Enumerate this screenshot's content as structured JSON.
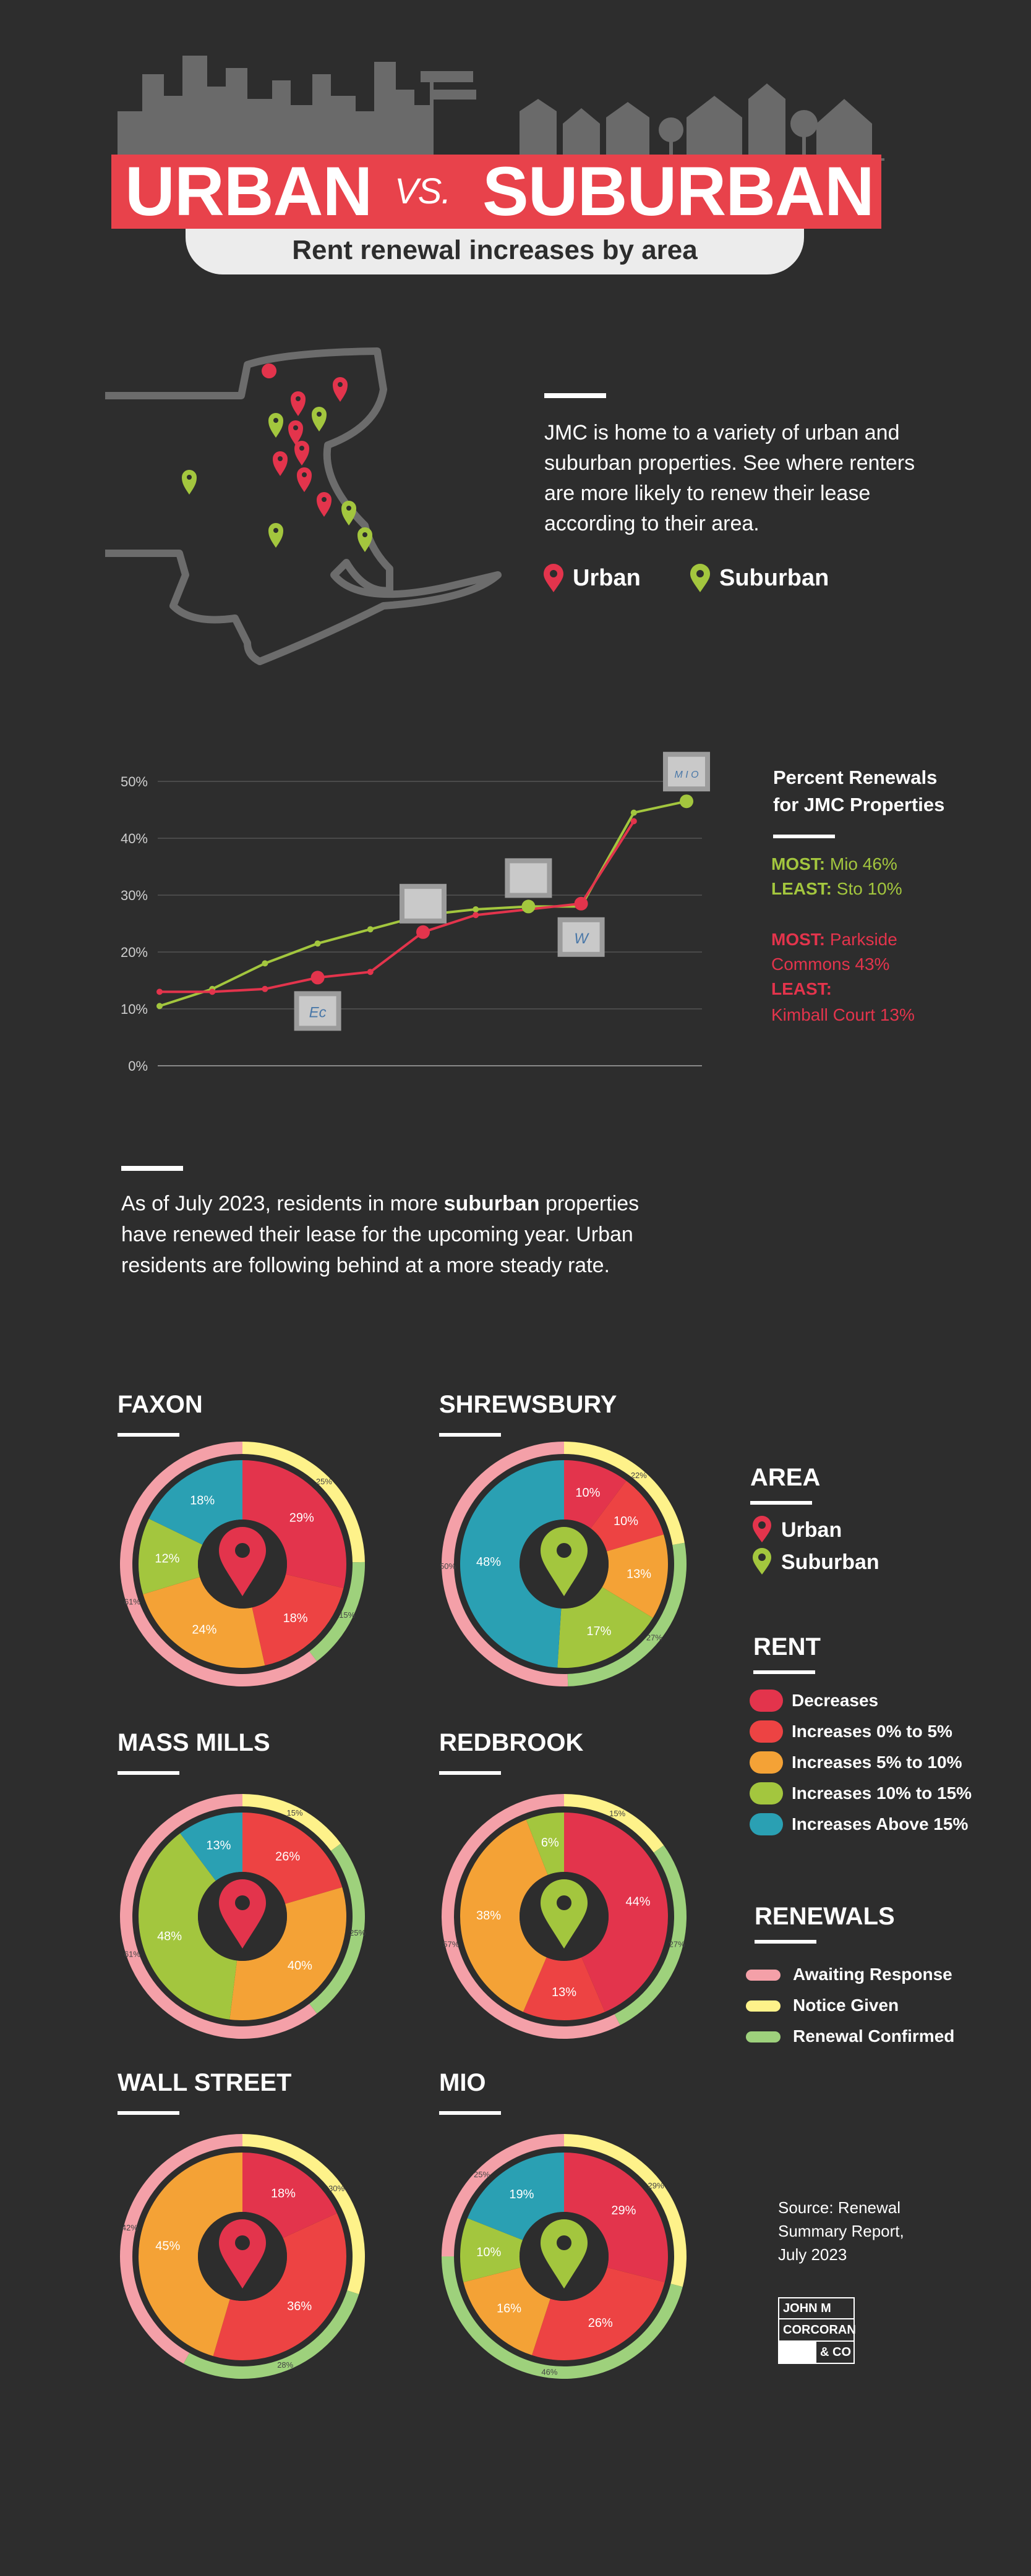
{
  "header": {
    "title_left": "URBAN",
    "title_vs": "VS.",
    "title_right": "SUBURBAN",
    "subtitle": "Rent renewal increases by area"
  },
  "intro": {
    "text": "JMC is home to a variety of urban and suburban properties. See where renters are more likely to renew their lease according to their area.",
    "legend_urban": "Urban",
    "legend_suburban": "Suburban"
  },
  "colors": {
    "background": "#2d2d2d",
    "urban": "#e3344c",
    "suburban": "#a3c63e",
    "decreases": "#e3344c",
    "inc_0_5": "#ed4343",
    "inc_5_10": "#f4a236",
    "inc_10_15": "#a3c63e",
    "inc_above_15": "#2aa0b3",
    "awaiting": "#f4a0a8",
    "notice": "#fef28a",
    "confirmed": "#9ed17c"
  },
  "chart_data": [
    {
      "type": "line",
      "title": "Percent Renewals for JMC Properties",
      "ylim": [
        0,
        50
      ],
      "yticks": [
        "0%",
        "10%",
        "20%",
        "30%",
        "40%",
        "50%"
      ],
      "series": [
        {
          "name": "Suburban",
          "values": [
            10.5,
            13.5,
            18,
            21.5,
            24,
            26.5,
            27.5,
            28,
            28,
            44.5,
            46.5
          ]
        },
        {
          "name": "Urban",
          "values": [
            13,
            13,
            13.5,
            15.5,
            16.5,
            23.5,
            26.5,
            27.5,
            28.5,
            43
          ]
        }
      ],
      "highlighted_points": [
        {
          "series": "Urban",
          "index": 3,
          "label": "Ec"
        },
        {
          "series": "Urban",
          "index": 5,
          "label": ""
        },
        {
          "series": "Suburban",
          "index": 7,
          "label": ""
        },
        {
          "series": "Urban",
          "index": 8,
          "label": "W"
        },
        {
          "series": "Suburban",
          "index": 10,
          "label": "M I O"
        }
      ]
    },
    {
      "type": "pie",
      "name": "FAXON",
      "area": "urban",
      "rent": [
        {
          "category": "Decreases",
          "value": 29,
          "label": "29%"
        },
        {
          "category": "Increases 0% to 5%",
          "value": 18,
          "label": "18%"
        },
        {
          "category": "Increases 5% to 10%",
          "value": 24,
          "label": "24%"
        },
        {
          "category": "Increases 10% to 15%",
          "value": 12,
          "label": "12%"
        },
        {
          "category": "Increases Above 15%",
          "value": 18,
          "label": "18%"
        }
      ],
      "renewals": [
        {
          "category": "Notice Given",
          "value": 25,
          "label": "25%"
        },
        {
          "category": "Renewal Confirmed",
          "value": 15,
          "label": "15%"
        },
        {
          "category": "Awaiting Response",
          "value": 61,
          "label": "61%"
        }
      ]
    },
    {
      "type": "pie",
      "name": "SHREWSBURY",
      "area": "suburban",
      "rent": [
        {
          "category": "Decreases",
          "value": 10,
          "label": "10%"
        },
        {
          "category": "Increases 0% to 5%",
          "value": 10,
          "label": "10%"
        },
        {
          "category": "Increases 5% to 10%",
          "value": 13,
          "label": "13%"
        },
        {
          "category": "Increases 10% to 15%",
          "value": 17,
          "label": "17%"
        },
        {
          "category": "Increases Above 15%",
          "value": 48,
          "label": "48%"
        }
      ],
      "renewals": [
        {
          "category": "Notice Given",
          "value": 22,
          "label": "22%"
        },
        {
          "category": "Renewal Confirmed",
          "value": 27,
          "label": "27%"
        },
        {
          "category": "Awaiting Response",
          "value": 50,
          "label": "50%"
        }
      ]
    },
    {
      "type": "pie",
      "name": "MASS MILLS",
      "area": "urban",
      "rent": [
        {
          "category": "Increases 0% to 5%",
          "value": 26,
          "label": "26%"
        },
        {
          "category": "Increases 5% to 10%",
          "value": 40,
          "label": "40%"
        },
        {
          "category": "Increases 10% to 15%",
          "value": 48,
          "label": "48%"
        },
        {
          "category": "Increases Above 15%",
          "value": 13,
          "label": "13%"
        }
      ],
      "renewals": [
        {
          "category": "Notice Given",
          "value": 15,
          "label": "15%"
        },
        {
          "category": "Renewal Confirmed",
          "value": 25,
          "label": "25%"
        },
        {
          "category": "Awaiting Response",
          "value": 61,
          "label": "61%"
        }
      ]
    },
    {
      "type": "pie",
      "name": "REDBROOK",
      "area": "suburban",
      "rent": [
        {
          "category": "Decreases",
          "value": 44,
          "label": "44%"
        },
        {
          "category": "Increases 0% to 5%",
          "value": 13,
          "label": "13%"
        },
        {
          "category": "Increases 5% to 10%",
          "value": 38,
          "label": "38%"
        },
        {
          "category": "Increases 10% to 15%",
          "value": 6,
          "label": "6%"
        }
      ],
      "renewals": [
        {
          "category": "Notice Given",
          "value": 15,
          "label": "15%"
        },
        {
          "category": "Renewal Confirmed",
          "value": 27,
          "label": "27%"
        },
        {
          "category": "Awaiting Response",
          "value": 57,
          "label": "57%"
        }
      ]
    },
    {
      "type": "pie",
      "name": "WALL STREET",
      "area": "urban",
      "rent": [
        {
          "category": "Decreases",
          "value": 18,
          "label": "18%"
        },
        {
          "category": "Increases 0% to 5%",
          "value": 36,
          "label": "36%"
        },
        {
          "category": "Increases 5% to 10%",
          "value": 45,
          "label": "45%"
        }
      ],
      "renewals": [
        {
          "category": "Notice Given",
          "value": 30,
          "label": "30%"
        },
        {
          "category": "Renewal Confirmed",
          "value": 28,
          "label": "28%"
        },
        {
          "category": "Awaiting Response",
          "value": 42,
          "label": "42%"
        }
      ]
    },
    {
      "type": "pie",
      "name": "MIO",
      "area": "suburban",
      "rent": [
        {
          "category": "Decreases",
          "value": 29,
          "label": "29%"
        },
        {
          "category": "Increases 0% to 5%",
          "value": 26,
          "label": "26%"
        },
        {
          "category": "Increases 5% to 10%",
          "value": 16,
          "label": "16%"
        },
        {
          "category": "Increases 10% to 15%",
          "value": 10,
          "label": "10%"
        },
        {
          "category": "Increases Above 15%",
          "value": 19,
          "label": "19%"
        }
      ],
      "renewals": [
        {
          "category": "Notice Given",
          "value": 29,
          "label": "29%"
        },
        {
          "category": "Renewal Confirmed",
          "value": 46,
          "label": "46%"
        },
        {
          "category": "Awaiting Response",
          "value": 25,
          "label": "25%"
        }
      ]
    }
  ],
  "stats": {
    "heading_1": "Percent Renewals",
    "heading_2": "for JMC Properties",
    "most_suburban_label": "MOST:",
    "most_suburban_value": "Mio 46%",
    "least_suburban_label": "LEAST:",
    "least_suburban_value": "Sto 10%",
    "most_urban_label": "MOST:",
    "most_urban_value_1": "Parkside",
    "most_urban_value_2": "Commons 43%",
    "least_urban_label": "LEAST:",
    "least_urban_value": "Kimball Court  13%"
  },
  "summary": {
    "line_1_pre": "As of July 2023, residents in more ",
    "line_1_bold": "suburban",
    "line_1_post": " properties",
    "line_2": "have renewed their lease for the upcoming year. Urban",
    "line_3": "residents are following behind at a more steady rate."
  },
  "legend": {
    "area_title": "AREA",
    "area_urban": "Urban",
    "area_suburban": "Suburban",
    "rent_title": "RENT",
    "rent_items": [
      "Decreases",
      "Increases 0% to 5%",
      "Increases 5% to 10%",
      "Increases 10% to 15%",
      "Increases Above 15%"
    ],
    "renewals_title": "RENEWALS",
    "renewal_items": [
      "Awaiting Response",
      "Notice Given",
      "Renewal Confirmed"
    ]
  },
  "footer": {
    "source_1": "Source: Renewal",
    "source_2": "Summary Report,",
    "source_3": "July 2023",
    "logo_1": "JOHN M",
    "logo_2": "CORCORAN",
    "logo_3": "& CO"
  }
}
